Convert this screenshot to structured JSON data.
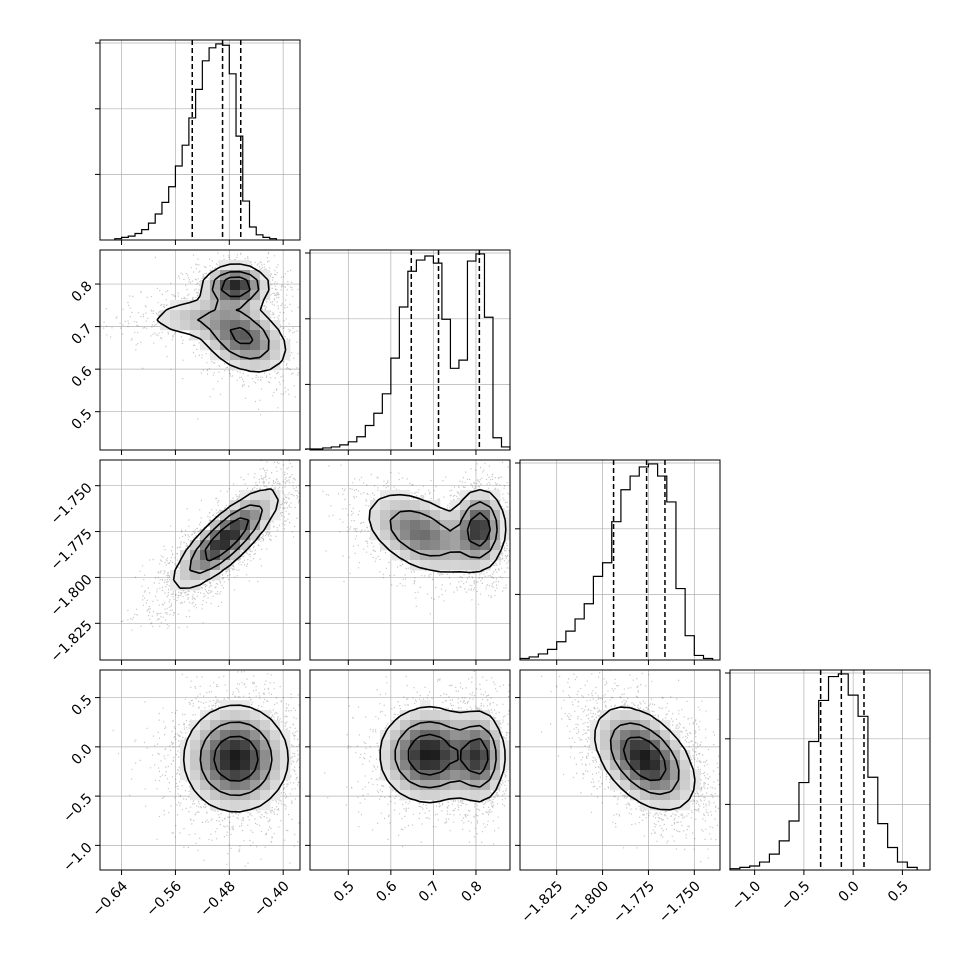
{
  "chart_data": {
    "type": "corner",
    "title": "",
    "parameters": [
      {
        "label": "",
        "range": [
          -0.672,
          -0.375
        ],
        "ticks": [
          -0.64,
          -0.56,
          -0.48,
          -0.4
        ],
        "tick_labels": [
          "−0.64",
          "−0.56",
          "−0.48",
          "−0.40"
        ]
      },
      {
        "label": "",
        "range": [
          0.41,
          0.88
        ],
        "ticks": [
          0.5,
          0.6,
          0.7,
          0.8
        ],
        "tick_labels": [
          "0.5",
          "0.6",
          "0.7",
          "0.8"
        ]
      },
      {
        "label": "",
        "range": [
          -1.845,
          -1.736
        ],
        "ticks": [
          -1.825,
          -1.8,
          -1.775,
          -1.75
        ],
        "tick_labels": [
          "−1.825",
          "−1.800",
          "−1.775",
          "−1.750"
        ]
      },
      {
        "label": "",
        "range": [
          -1.25,
          0.78
        ],
        "ticks": [
          -1.0,
          -0.5,
          0.0,
          0.5
        ],
        "tick_labels": [
          "−1.0",
          "−0.5",
          "0.0",
          "0.5"
        ]
      }
    ],
    "quantiles": [
      [
        -0.535,
        -0.49,
        -0.463
      ],
      [
        0.648,
        0.712,
        0.808
      ],
      [
        -1.794,
        -1.776,
        -1.766
      ],
      [
        -0.33,
        -0.12,
        0.11
      ]
    ],
    "histograms": [
      {
        "edges": [
          -0.65,
          -0.64,
          -0.63,
          -0.62,
          -0.61,
          -0.6,
          -0.59,
          -0.58,
          -0.57,
          -0.56,
          -0.55,
          -0.54,
          -0.53,
          -0.52,
          -0.51,
          -0.5,
          -0.49,
          -0.48,
          -0.47,
          -0.46,
          -0.45,
          -0.44,
          -0.43,
          -0.42,
          -0.41
        ],
        "counts": [
          1,
          2,
          3,
          5,
          8,
          13,
          20,
          29,
          41,
          57,
          73,
          94,
          116,
          138,
          148,
          151,
          150,
          128,
          80,
          30,
          10,
          4,
          2,
          1
        ]
      },
      {
        "edges": [
          0.4,
          0.42,
          0.44,
          0.46,
          0.48,
          0.5,
          0.52,
          0.54,
          0.56,
          0.58,
          0.6,
          0.62,
          0.64,
          0.66,
          0.68,
          0.7,
          0.72,
          0.74,
          0.76,
          0.78,
          0.8,
          0.82,
          0.84,
          0.86,
          0.88
        ],
        "counts": [
          1,
          1,
          2,
          3,
          5,
          8,
          13,
          24,
          36,
          55,
          90,
          140,
          175,
          186,
          190,
          183,
          128,
          80,
          88,
          185,
          192,
          130,
          12,
          3
        ]
      },
      {
        "edges": [
          -1.845,
          -1.84,
          -1.835,
          -1.83,
          -1.825,
          -1.82,
          -1.815,
          -1.81,
          -1.805,
          -1.8,
          -1.795,
          -1.79,
          -1.785,
          -1.78,
          -1.775,
          -1.77,
          -1.765,
          -1.76,
          -1.755,
          -1.75,
          -1.745,
          -1.74
        ],
        "counts": [
          1,
          2,
          4,
          7,
          12,
          19,
          27,
          37,
          55,
          64,
          91,
          112,
          121,
          127,
          129,
          121,
          104,
          47,
          16,
          3,
          1
        ]
      },
      {
        "edges": [
          -1.25,
          -1.15,
          -1.05,
          -0.95,
          -0.85,
          -0.75,
          -0.65,
          -0.55,
          -0.45,
          -0.35,
          -0.25,
          -0.15,
          -0.05,
          0.05,
          0.15,
          0.25,
          0.35,
          0.45,
          0.55,
          0.65
        ],
        "counts": [
          1,
          2,
          3,
          6,
          12,
          22,
          37,
          66,
          97,
          128,
          146,
          148,
          132,
          116,
          70,
          35,
          17,
          6,
          2
        ]
      }
    ],
    "pairs": [
      {
        "x": 0,
        "y": 1,
        "peaks": [
          {
            "cx": -0.47,
            "cy": 0.795,
            "sx": 0.025,
            "sy": 0.025,
            "rho": 0,
            "w": 1.0
          },
          {
            "cx": -0.46,
            "cy": 0.675,
            "sx": 0.035,
            "sy": 0.045,
            "rho": -0.35,
            "w": 0.75
          },
          {
            "cx": -0.54,
            "cy": 0.72,
            "sx": 0.04,
            "sy": 0.025,
            "rho": 0.1,
            "w": 0.3
          }
        ]
      },
      {
        "x": 0,
        "y": 2,
        "peaks": [
          {
            "cx": -0.485,
            "cy": -1.779,
            "sx": 0.04,
            "sy": 0.014,
            "rho": 0.82,
            "w": 1.0
          }
        ]
      },
      {
        "x": 1,
        "y": 2,
        "peaks": [
          {
            "cx": 0.81,
            "cy": -1.773,
            "sx": 0.03,
            "sy": 0.011,
            "rho": 0,
            "w": 1.0
          },
          {
            "cx": 0.67,
            "cy": -1.776,
            "sx": 0.07,
            "sy": 0.012,
            "rho": -0.45,
            "w": 0.75
          }
        ]
      },
      {
        "x": 0,
        "y": 3,
        "peaks": [
          {
            "cx": -0.47,
            "cy": -0.12,
            "sx": 0.04,
            "sy": 0.28,
            "rho": 0,
            "w": 1.0
          }
        ]
      },
      {
        "x": 1,
        "y": 3,
        "peaks": [
          {
            "cx": 0.69,
            "cy": -0.08,
            "sx": 0.06,
            "sy": 0.25,
            "rho": 0,
            "w": 1.0
          },
          {
            "cx": 0.81,
            "cy": -0.1,
            "sx": 0.03,
            "sy": 0.24,
            "rho": 0,
            "w": 0.8
          }
        ]
      },
      {
        "x": 2,
        "y": 3,
        "peaks": [
          {
            "cx": -1.777,
            "cy": -0.12,
            "sx": 0.014,
            "sy": 0.27,
            "rho": -0.45,
            "w": 1.0
          }
        ]
      }
    ]
  }
}
